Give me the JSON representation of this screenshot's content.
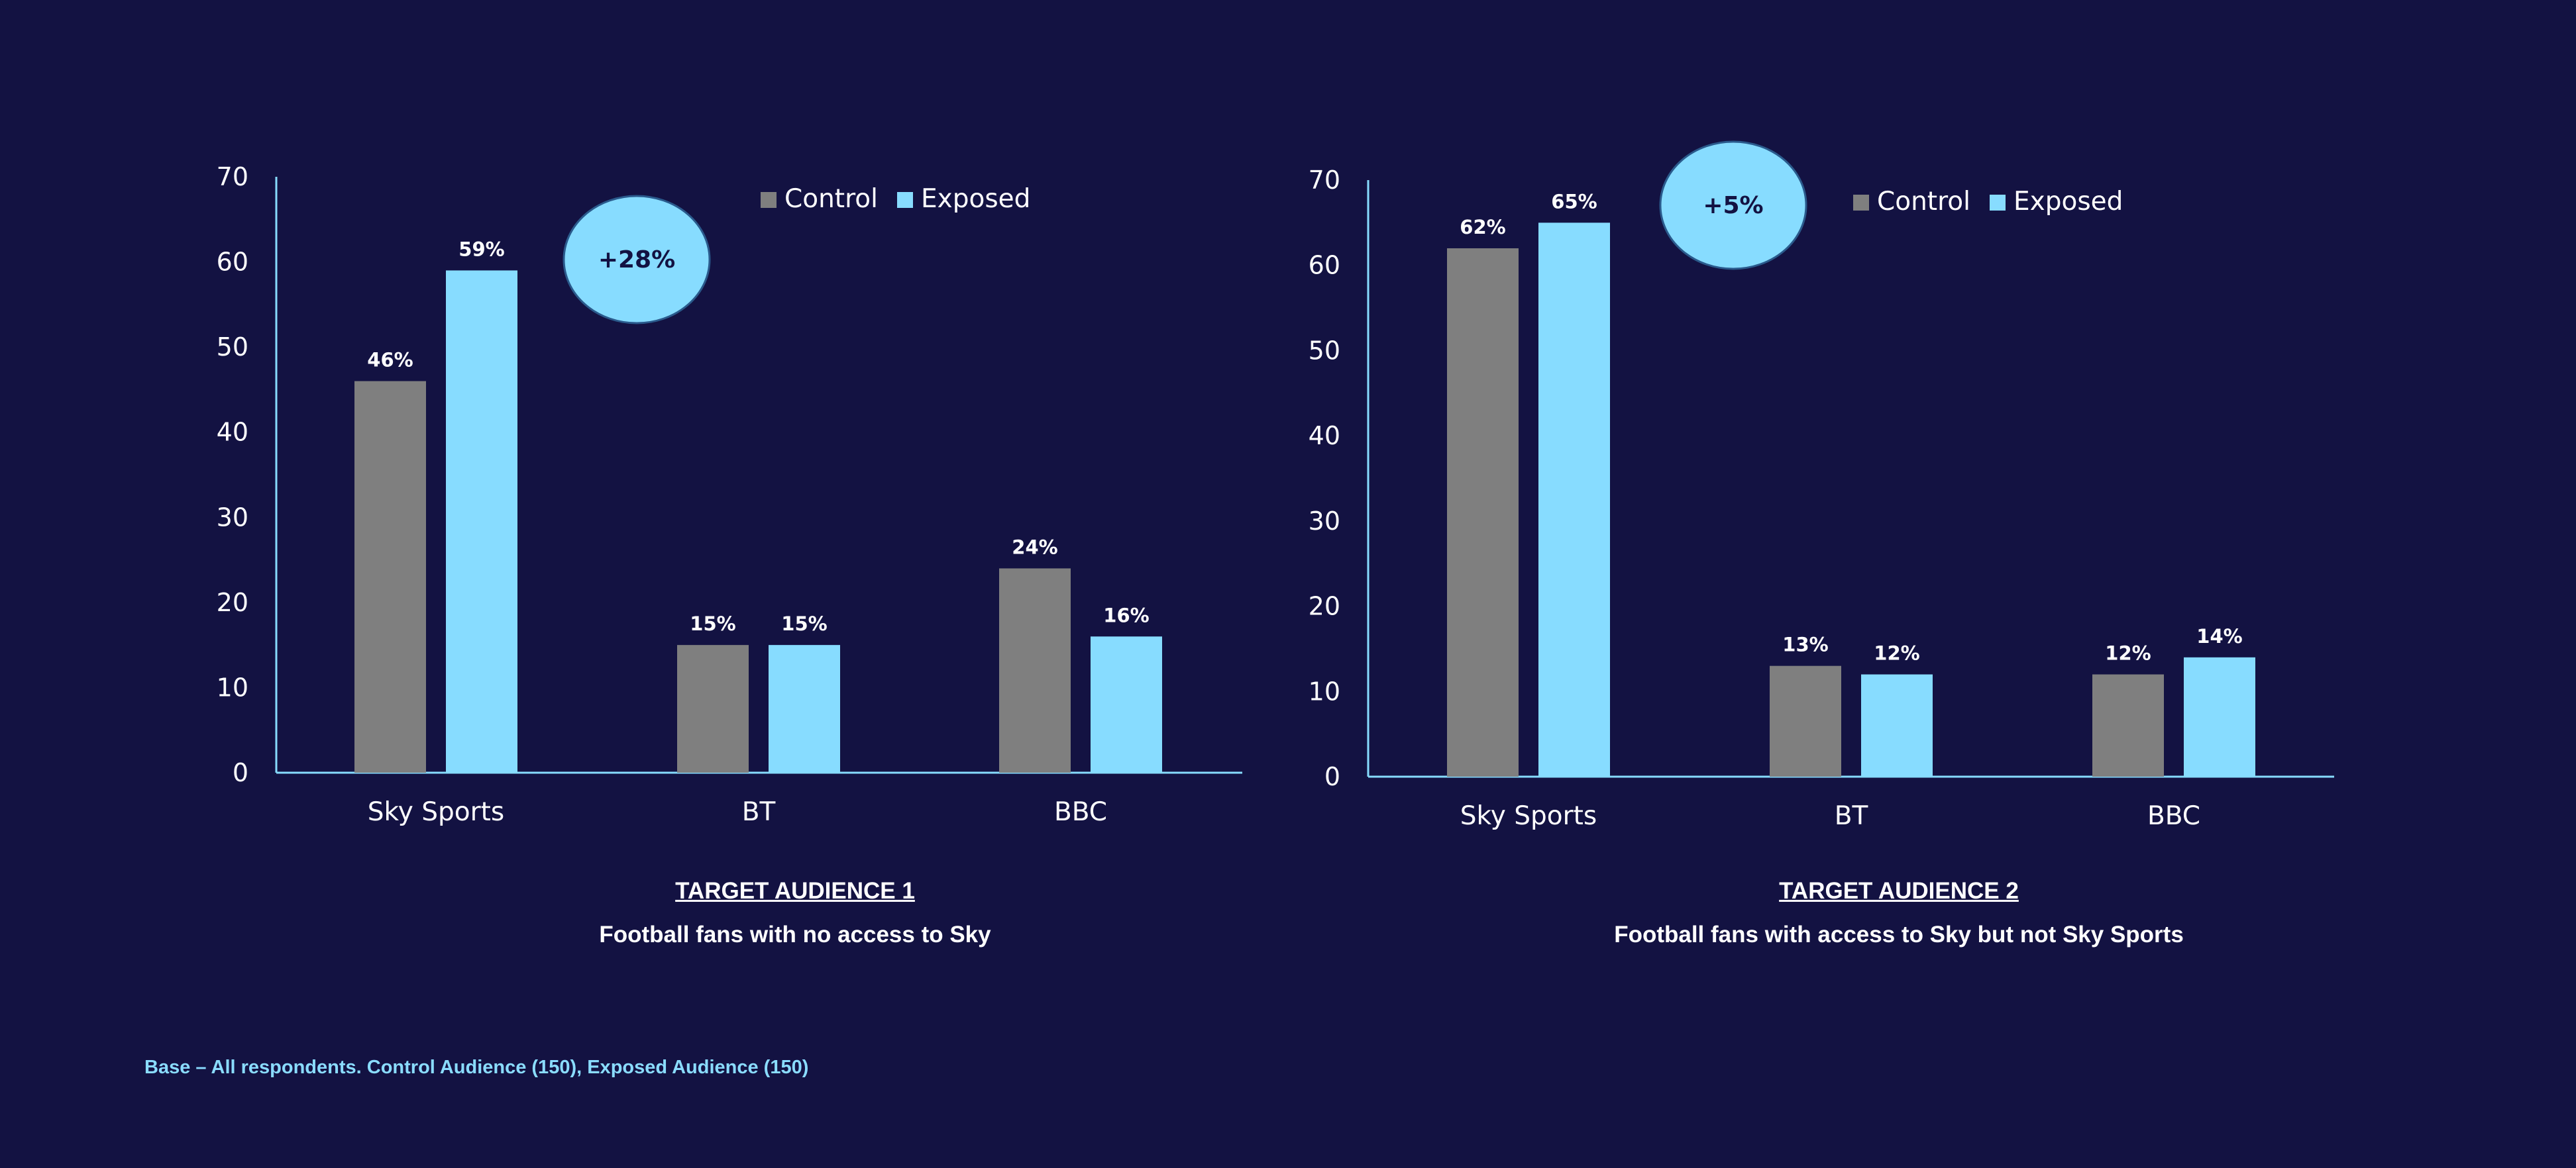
{
  "colors": {
    "background": "#131242",
    "control": "#7f7f7f",
    "exposed": "#87dcff",
    "axis": "#87dcff",
    "text": "#ffffff"
  },
  "footnote": "Base – All respondents. Control Audience (150), Exposed Audience (150)",
  "chart_data": [
    {
      "type": "bar",
      "categories": [
        "Sky Sports",
        "BT",
        "BBC"
      ],
      "series": [
        {
          "name": "Control",
          "values": [
            46,
            15,
            24
          ],
          "labels": [
            "46%",
            "15%",
            "24%"
          ]
        },
        {
          "name": "Exposed",
          "values": [
            59,
            15,
            16
          ],
          "labels": [
            "59%",
            "15%",
            "16%"
          ]
        }
      ],
      "ylim": [
        0,
        70
      ],
      "yticks": [
        0,
        10,
        20,
        30,
        40,
        50,
        60,
        70
      ],
      "legend_position": "top",
      "callout": "+28%",
      "caption_title": "TARGET AUDIENCE 1",
      "caption_subtitle": "Football fans with no access to Sky",
      "grid": false
    },
    {
      "type": "bar",
      "categories": [
        "Sky Sports",
        "BT",
        "BBC"
      ],
      "series": [
        {
          "name": "Control",
          "values": [
            62,
            13,
            12
          ],
          "labels": [
            "62%",
            "13%",
            "12%"
          ]
        },
        {
          "name": "Exposed",
          "values": [
            65,
            12,
            14
          ],
          "labels": [
            "65%",
            "12%",
            "14%"
          ]
        }
      ],
      "ylim": [
        0,
        70
      ],
      "yticks": [
        0,
        10,
        20,
        30,
        40,
        50,
        60,
        70
      ],
      "legend_position": "top",
      "callout": "+5%",
      "caption_title": "TARGET AUDIENCE 2",
      "caption_subtitle": "Football fans with access to Sky but not Sky Sports",
      "grid": false
    }
  ]
}
